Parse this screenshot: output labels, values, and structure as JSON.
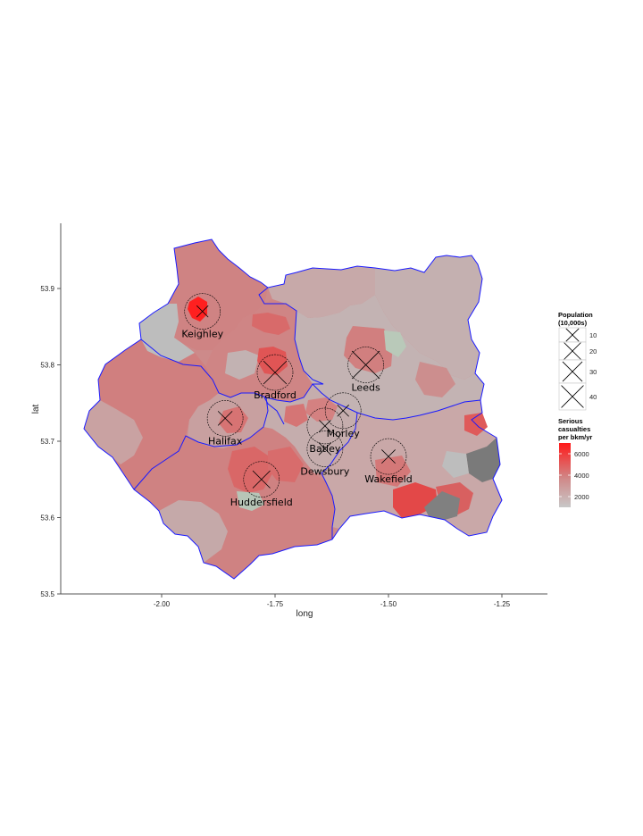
{
  "chart_data": {
    "type": "map",
    "xlabel": "long",
    "ylabel": "lat",
    "x_ticks": [
      {
        "value": -2.0,
        "label": "-2.00"
      },
      {
        "value": -1.75,
        "label": "-1.75"
      },
      {
        "value": -1.5,
        "label": "-1.50"
      },
      {
        "value": -1.25,
        "label": "-1.25"
      }
    ],
    "y_ticks": [
      {
        "value": 53.5,
        "label": "53.5"
      },
      {
        "value": 53.6,
        "label": "53.6"
      },
      {
        "value": 53.7,
        "label": "53.7"
      },
      {
        "value": 53.8,
        "label": "53.8"
      },
      {
        "value": 53.9,
        "label": "53.9"
      }
    ],
    "towns": [
      {
        "name": "Keighley",
        "long": -1.91,
        "lat": 53.87,
        "population_10000s": 5
      },
      {
        "name": "Bradford",
        "long": -1.75,
        "lat": 53.79,
        "population_10000s": 30
      },
      {
        "name": "Leeds",
        "long": -1.55,
        "lat": 53.8,
        "population_10000s": 45
      },
      {
        "name": "Halifax",
        "long": -1.86,
        "lat": 53.73,
        "population_10000s": 9
      },
      {
        "name": "Morley",
        "long": -1.6,
        "lat": 53.74,
        "population_10000s": 5
      },
      {
        "name": "Batley",
        "long": -1.64,
        "lat": 53.72,
        "population_10000s": 5
      },
      {
        "name": "Dewsbury",
        "long": -1.64,
        "lat": 53.69,
        "population_10000s": 6
      },
      {
        "name": "Huddersfield",
        "long": -1.78,
        "lat": 53.65,
        "population_10000s": 15
      },
      {
        "name": "Wakefield",
        "long": -1.5,
        "lat": 53.68,
        "population_10000s": 8
      }
    ],
    "legend_population": {
      "title_line1": "Population",
      "title_line2": "(10,000s)",
      "entries": [
        {
          "value": 10,
          "label": "10"
        },
        {
          "value": 20,
          "label": "20"
        },
        {
          "value": 30,
          "label": "30"
        },
        {
          "value": 40,
          "label": "40"
        }
      ]
    },
    "legend_casualties": {
      "title_line1": "Serious",
      "title_line2": "casualties",
      "title_line3": "per bkm/yr",
      "ticks": [
        {
          "value": 6000,
          "label": "6000"
        },
        {
          "value": 4000,
          "label": "4000"
        },
        {
          "value": 2000,
          "label": "2000"
        }
      ],
      "range": [
        1000,
        7000
      ],
      "color_low": "#c8c8c8",
      "color_high": "#ff1a1a"
    }
  }
}
